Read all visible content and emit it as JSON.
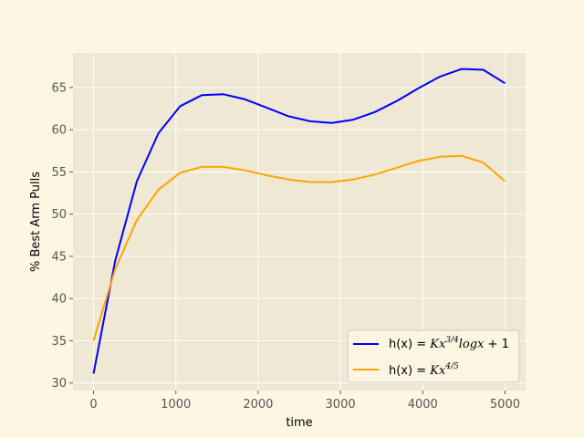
{
  "chart_data": {
    "type": "line",
    "xlabel": "time",
    "ylabel": "% Best Arm Pulls",
    "xlim": [
      -250,
      5250
    ],
    "ylim": [
      29.1,
      69.1
    ],
    "xticks": [
      0,
      1000,
      2000,
      3000,
      4000,
      5000
    ],
    "yticks": [
      30,
      35,
      40,
      45,
      50,
      55,
      60,
      65
    ],
    "grid": true,
    "legend_position": "lower-right",
    "series": [
      {
        "name": "h(x) = Kx^{3/4} log x + 1",
        "legend": {
          "prefix": "h(x) = ",
          "k": "Kx",
          "sup": "3/4",
          "log": "log",
          "x": "x",
          "plus": " + 1"
        },
        "color": "#0000ff",
        "x": [
          0,
          263,
          526,
          789,
          1053,
          1316,
          1579,
          1842,
          2105,
          2368,
          2632,
          2895,
          3158,
          3421,
          3684,
          3947,
          4211,
          4474,
          4737,
          5000
        ],
        "values": [
          31.1,
          44.5,
          53.9,
          59.6,
          62.8,
          64.1,
          64.2,
          63.6,
          62.6,
          61.6,
          61.0,
          60.8,
          61.2,
          62.1,
          63.4,
          64.9,
          66.3,
          67.2,
          67.1,
          65.5
        ]
      },
      {
        "name": "h(x) = Kx^{4/5}",
        "legend": {
          "prefix": "h(x) = ",
          "k": "Kx",
          "sup": "4/5"
        },
        "color": "#ffa500",
        "x": [
          0,
          263,
          526,
          789,
          1053,
          1316,
          1579,
          1842,
          2105,
          2368,
          2632,
          2895,
          3158,
          3421,
          3684,
          3947,
          4211,
          4474,
          4737,
          5000
        ],
        "values": [
          35.0,
          43.5,
          49.3,
          52.9,
          54.9,
          55.6,
          55.6,
          55.2,
          54.6,
          54.1,
          53.8,
          53.8,
          54.1,
          54.7,
          55.5,
          56.3,
          56.8,
          56.9,
          56.1,
          53.9
        ]
      }
    ]
  },
  "style": {
    "figure_bg": "#fdf6e3",
    "axes_bg": "#eee8d5",
    "grid_color": "#ffffff",
    "tick_color": "#555555"
  }
}
